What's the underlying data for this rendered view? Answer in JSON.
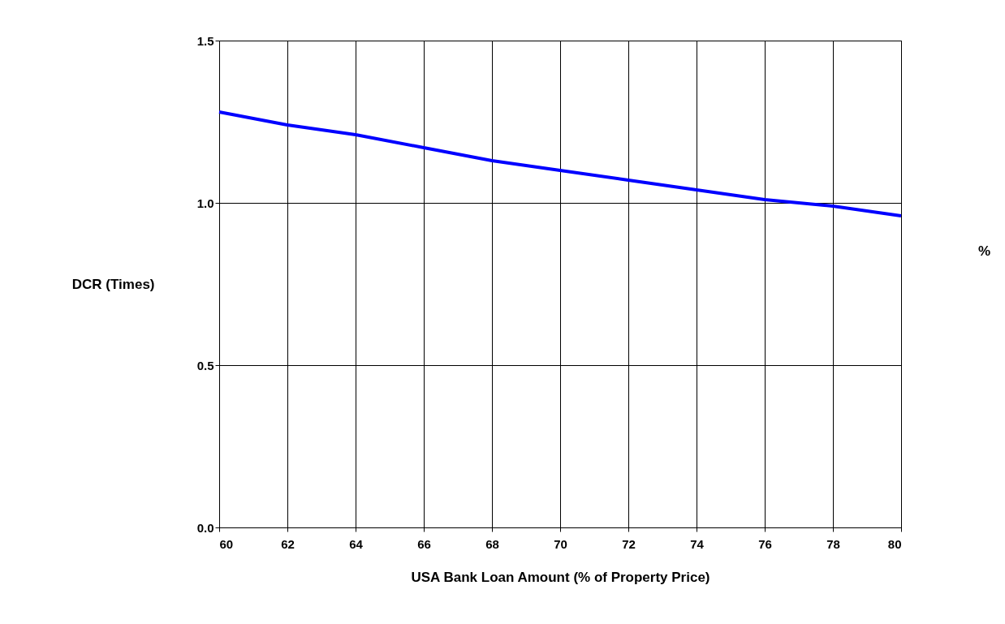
{
  "chart_data": {
    "type": "line",
    "xlabel": "USA Bank Loan Amount (% of Property Price)",
    "ylabel": "DCR (Times)",
    "annotations": [
      "%"
    ],
    "x": [
      60,
      62,
      64,
      66,
      68,
      70,
      72,
      74,
      76,
      78,
      80
    ],
    "series": [
      {
        "color": "#0000ff",
        "values": [
          1.28,
          1.24,
          1.21,
          1.17,
          1.13,
          1.1,
          1.07,
          1.04,
          1.01,
          0.99,
          0.96
        ]
      }
    ],
    "xlim": [
      60,
      80
    ],
    "xticks": [
      60,
      62,
      64,
      66,
      68,
      70,
      72,
      74,
      76,
      78,
      80
    ],
    "ylim": [
      0,
      1.5
    ],
    "yticks": [
      {
        "value": 0,
        "label": "0.0"
      },
      {
        "value": 0.5,
        "label": "0.5"
      },
      {
        "value": 1,
        "label": "1.0"
      },
      {
        "value": 1.5,
        "label": "1.5"
      }
    ],
    "grid": true,
    "marker": "none",
    "line_style": "solid"
  }
}
